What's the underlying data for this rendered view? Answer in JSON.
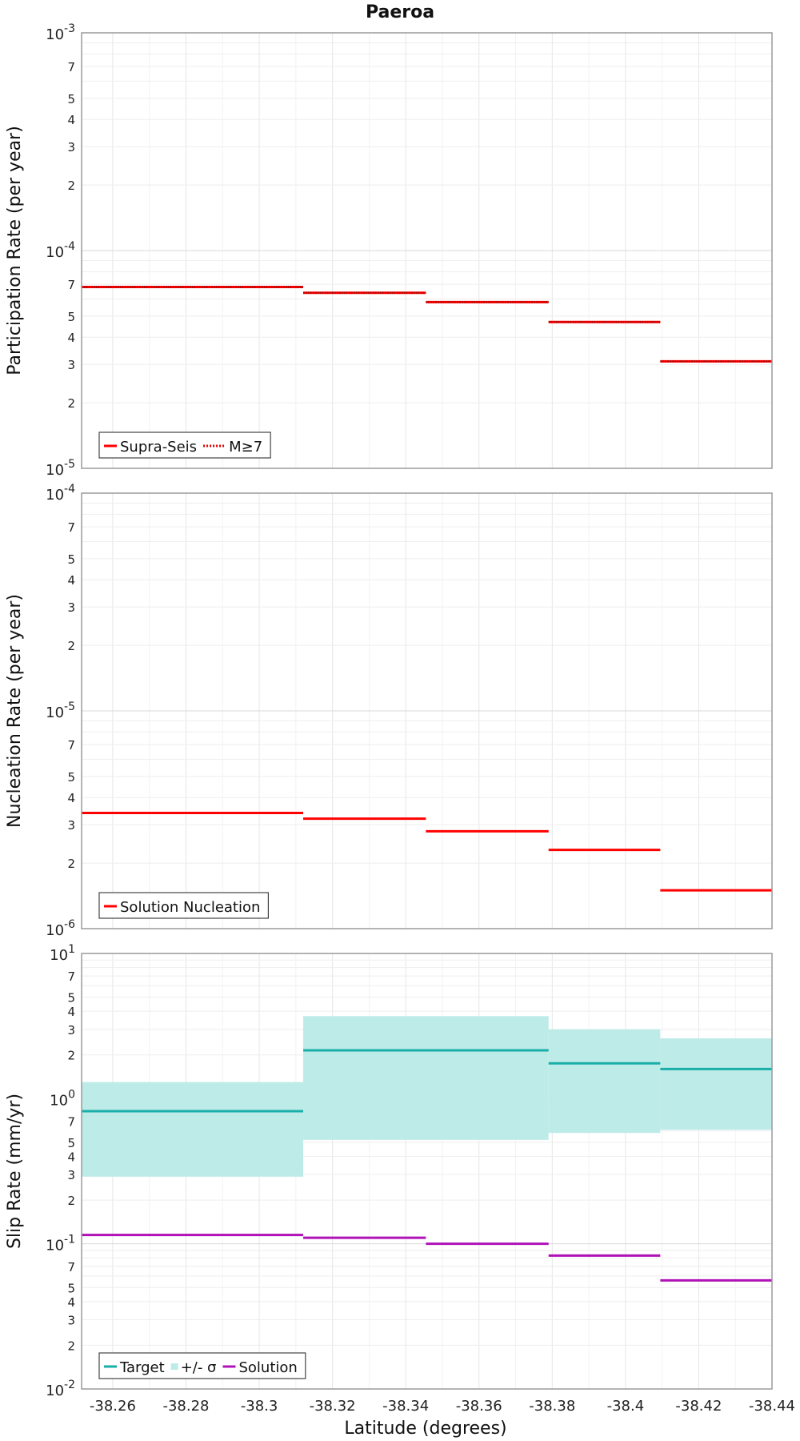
{
  "title": "Paeroa",
  "xlabel": "Latitude (degrees)",
  "chart_data": [
    {
      "type": "line",
      "title": "Paeroa",
      "ylabel": "Participation Rate (per year)",
      "yscale": "log",
      "ylim": [
        1e-05,
        0.001
      ],
      "xlim": [
        -38.2515,
        -38.44
      ],
      "x_reversed": true,
      "grid": true,
      "legend_position": "bottom-left",
      "series": [
        {
          "name": "Supra-Seis",
          "color": "#ff0000",
          "style": "solid",
          "segments": [
            {
              "x": [
                -38.2515,
                -38.312
              ],
              "y": 6.8e-05
            },
            {
              "x": [
                -38.312,
                -38.3455
              ],
              "y": 6.4e-05
            },
            {
              "x": [
                -38.3455,
                -38.379
              ],
              "y": 5.8e-05
            },
            {
              "x": [
                -38.379,
                -38.4095
              ],
              "y": 4.7e-05
            },
            {
              "x": [
                -38.4095,
                -38.44
              ],
              "y": 3.1e-05
            }
          ]
        },
        {
          "name": "M≥7",
          "color": "#ff0000",
          "style": "dotted",
          "segments": [
            {
              "x": [
                -38.2515,
                -38.312
              ],
              "y": 6.8e-05
            },
            {
              "x": [
                -38.312,
                -38.3455
              ],
              "y": 6.4e-05
            },
            {
              "x": [
                -38.3455,
                -38.379
              ],
              "y": 5.8e-05
            },
            {
              "x": [
                -38.379,
                -38.4095
              ],
              "y": 4.7e-05
            },
            {
              "x": [
                -38.4095,
                -38.44
              ],
              "y": 3.1e-05
            }
          ]
        }
      ]
    },
    {
      "type": "line",
      "ylabel": "Nucleation Rate (per year)",
      "yscale": "log",
      "ylim": [
        1e-06,
        0.0001
      ],
      "xlim": [
        -38.2515,
        -38.44
      ],
      "x_reversed": true,
      "grid": true,
      "legend_position": "bottom-left",
      "series": [
        {
          "name": "Solution Nucleation",
          "color": "#ff0000",
          "style": "solid",
          "segments": [
            {
              "x": [
                -38.2515,
                -38.312
              ],
              "y": 3.4e-06
            },
            {
              "x": [
                -38.312,
                -38.3455
              ],
              "y": 3.2e-06
            },
            {
              "x": [
                -38.3455,
                -38.379
              ],
              "y": 2.8e-06
            },
            {
              "x": [
                -38.379,
                -38.4095
              ],
              "y": 2.3e-06
            },
            {
              "x": [
                -38.4095,
                -38.44
              ],
              "y": 1.5e-06
            }
          ]
        }
      ]
    },
    {
      "type": "line",
      "ylabel": "Slip Rate (mm/yr)",
      "yscale": "log",
      "ylim": [
        0.01,
        10
      ],
      "xlim": [
        -38.2515,
        -38.44
      ],
      "x_reversed": true,
      "xticks": [
        -38.26,
        -38.28,
        -38.3,
        -38.32,
        -38.34,
        -38.36,
        -38.38,
        -38.4,
        -38.42,
        -38.44
      ],
      "grid": true,
      "legend_position": "bottom-left",
      "band": {
        "name": "+/- σ",
        "color": "#bdebe8",
        "segments": [
          {
            "x": [
              -38.2515,
              -38.312
            ],
            "low": 0.29,
            "high": 1.3
          },
          {
            "x": [
              -38.312,
              -38.379
            ],
            "low": 0.52,
            "high": 3.7
          },
          {
            "x": [
              -38.379,
              -38.4095
            ],
            "low": 0.58,
            "high": 3.0
          },
          {
            "x": [
              -38.4095,
              -38.44
            ],
            "low": 0.61,
            "high": 2.6
          }
        ]
      },
      "series": [
        {
          "name": "Target",
          "color": "#1aaea8",
          "style": "solid",
          "segments": [
            {
              "x": [
                -38.2515,
                -38.312
              ],
              "y": 0.82
            },
            {
              "x": [
                -38.312,
                -38.379
              ],
              "y": 2.15
            },
            {
              "x": [
                -38.379,
                -38.4095
              ],
              "y": 1.75
            },
            {
              "x": [
                -38.4095,
                -38.44
              ],
              "y": 1.6
            }
          ]
        },
        {
          "name": "Solution",
          "color": "#b012b8",
          "style": "solid",
          "segments": [
            {
              "x": [
                -38.2515,
                -38.312
              ],
              "y": 0.115
            },
            {
              "x": [
                -38.312,
                -38.3455
              ],
              "y": 0.11
            },
            {
              "x": [
                -38.3455,
                -38.379
              ],
              "y": 0.1
            },
            {
              "x": [
                -38.379,
                -38.4095
              ],
              "y": 0.083
            },
            {
              "x": [
                -38.4095,
                -38.44
              ],
              "y": 0.056
            }
          ]
        }
      ]
    }
  ]
}
